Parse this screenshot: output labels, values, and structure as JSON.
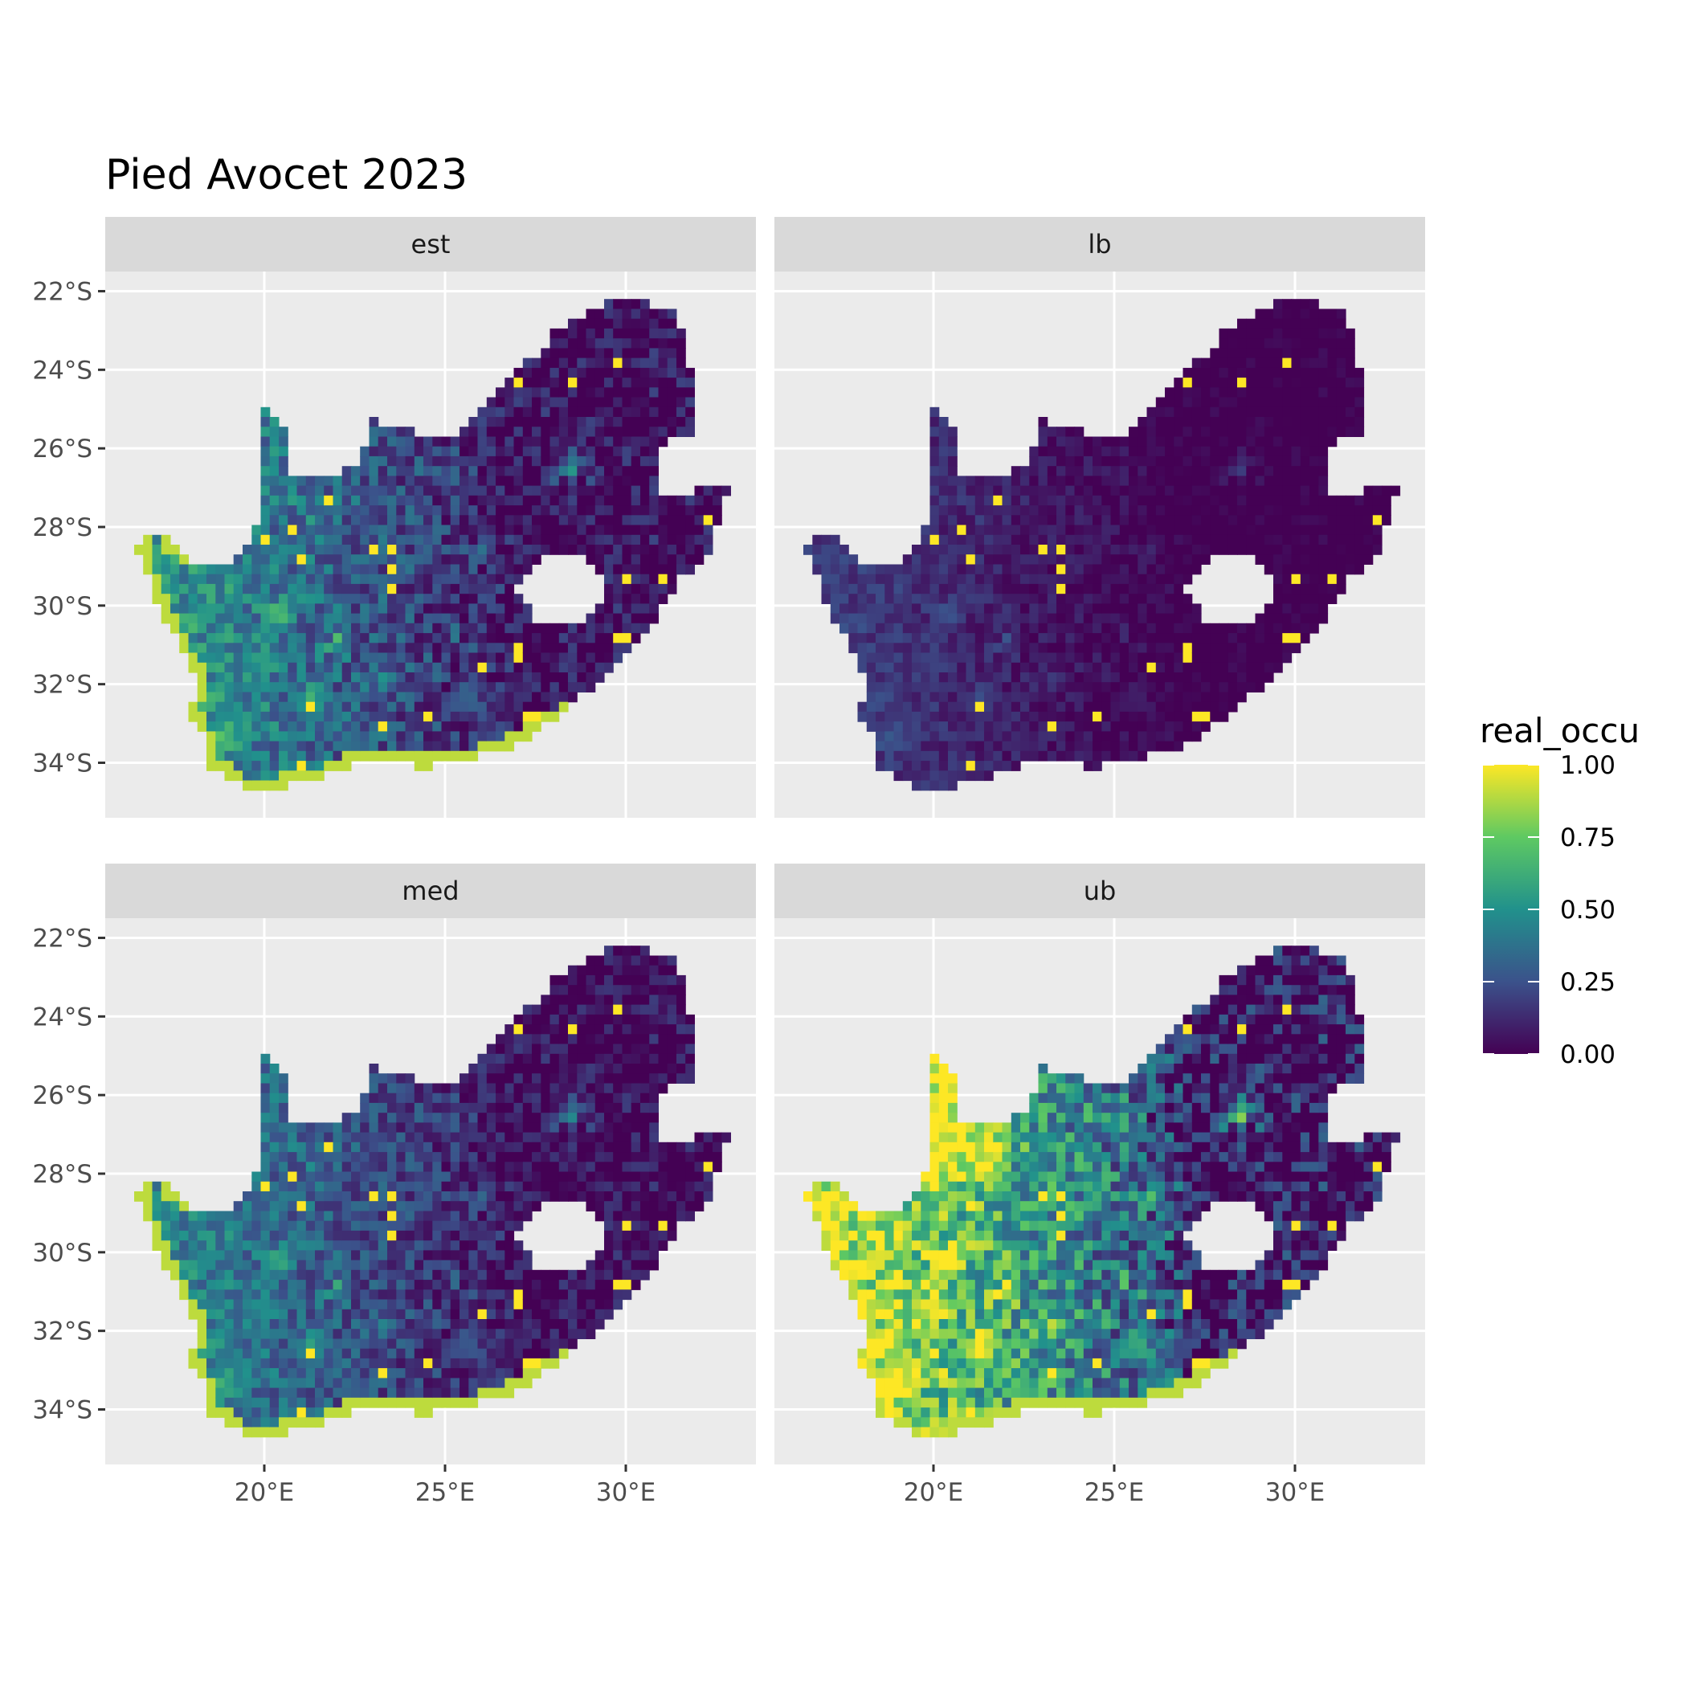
{
  "chart_data": {
    "type": "heatmap",
    "title": "Pied Avocet 2023",
    "subtitle": "",
    "xlabel": "",
    "ylabel": "",
    "x_ticks": [
      "20°E",
      "25°E",
      "30°E"
    ],
    "y_ticks": [
      "22°S",
      "24°S",
      "26°S",
      "28°S",
      "30°S",
      "32°S",
      "34°S"
    ],
    "x_tick_values": [
      20,
      25,
      30
    ],
    "y_tick_values": [
      -22,
      -24,
      -26,
      -28,
      -30,
      -32,
      -34
    ],
    "xlim": [
      15.6,
      33.6
    ],
    "ylim": [
      -35.4,
      -21.5
    ],
    "grid": true,
    "facets": [
      "est",
      "lb",
      "med",
      "ub"
    ],
    "legend": {
      "title": "real_occu",
      "position": "right",
      "labels": [
        "1.00",
        "0.75",
        "0.50",
        "0.25",
        "0.00"
      ],
      "values": [
        1.0,
        0.75,
        0.5,
        0.25,
        0.0
      ],
      "colors": [
        "#fde725",
        "#5ec962",
        "#21918c",
        "#3b528b",
        "#440154"
      ]
    },
    "colors": {
      "panel_bg": "#ebebeb",
      "strip_bg": "#d9d9d9",
      "grid": "#ffffff"
    }
  }
}
